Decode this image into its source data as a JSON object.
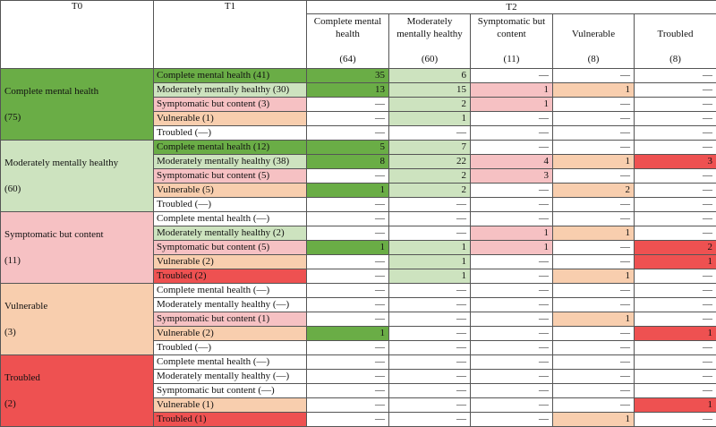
{
  "headers": {
    "t0": "T0",
    "t1": "T1",
    "t2": "T2",
    "t2_columns": [
      {
        "label": "Complete mental health",
        "count": "(64)"
      },
      {
        "label": "Moderately mentally healthy",
        "count": "(60)"
      },
      {
        "label": "Symptomatic but content",
        "count": "(11)"
      },
      {
        "label": "Vulnerable",
        "count": "(8)"
      },
      {
        "label": "Troubled",
        "count": "(8)"
      }
    ]
  },
  "colors": {
    "complete": "#6aad46",
    "moderate": "#cde3bf",
    "symptomatic": "#f6c1c3",
    "vulnerable": "#f8ceae",
    "troubled": "#ee5151",
    "white": "#ffffff"
  },
  "groups": [
    {
      "t0_label": "Complete mental health",
      "t0_count": "(75)",
      "t0_color": "complete",
      "rows": [
        {
          "t1": "Complete mental health (41)",
          "t1_color": "complete",
          "cells": [
            {
              "v": "35",
              "c": "complete"
            },
            {
              "v": "6",
              "c": "moderate"
            },
            {
              "v": "—",
              "c": "white"
            },
            {
              "v": "—",
              "c": "white"
            },
            {
              "v": "—",
              "c": "white"
            }
          ]
        },
        {
          "t1": "Moderately mentally healthy (30)",
          "t1_color": "moderate",
          "cells": [
            {
              "v": "13",
              "c": "complete"
            },
            {
              "v": "15",
              "c": "moderate"
            },
            {
              "v": "1",
              "c": "symptomatic"
            },
            {
              "v": "1",
              "c": "vulnerable"
            },
            {
              "v": "—",
              "c": "white"
            }
          ]
        },
        {
          "t1": "Symptomatic but content (3)",
          "t1_color": "symptomatic",
          "cells": [
            {
              "v": "—",
              "c": "white"
            },
            {
              "v": "2",
              "c": "moderate"
            },
            {
              "v": "1",
              "c": "symptomatic"
            },
            {
              "v": "—",
              "c": "white"
            },
            {
              "v": "—",
              "c": "white"
            }
          ]
        },
        {
          "t1": "Vulnerable (1)",
          "t1_color": "vulnerable",
          "cells": [
            {
              "v": "—",
              "c": "white"
            },
            {
              "v": "1",
              "c": "moderate"
            },
            {
              "v": "—",
              "c": "white"
            },
            {
              "v": "—",
              "c": "white"
            },
            {
              "v": "—",
              "c": "white"
            }
          ]
        },
        {
          "t1": "Troubled (—)",
          "t1_color": "white",
          "cells": [
            {
              "v": "—",
              "c": "white"
            },
            {
              "v": "—",
              "c": "white"
            },
            {
              "v": "—",
              "c": "white"
            },
            {
              "v": "—",
              "c": "white"
            },
            {
              "v": "—",
              "c": "white"
            }
          ]
        }
      ]
    },
    {
      "t0_label": "Moderately mentally healthy",
      "t0_count": "(60)",
      "t0_color": "moderate",
      "rows": [
        {
          "t1": "Complete mental health (12)",
          "t1_color": "complete",
          "cells": [
            {
              "v": "5",
              "c": "complete"
            },
            {
              "v": "7",
              "c": "moderate"
            },
            {
              "v": "—",
              "c": "white"
            },
            {
              "v": "—",
              "c": "white"
            },
            {
              "v": "—",
              "c": "white"
            }
          ]
        },
        {
          "t1": "Moderately mentally healthy (38)",
          "t1_color": "moderate",
          "cells": [
            {
              "v": "8",
              "c": "complete"
            },
            {
              "v": "22",
              "c": "moderate"
            },
            {
              "v": "4",
              "c": "symptomatic"
            },
            {
              "v": "1",
              "c": "vulnerable"
            },
            {
              "v": "3",
              "c": "troubled"
            }
          ]
        },
        {
          "t1": "Symptomatic but content (5)",
          "t1_color": "symptomatic",
          "cells": [
            {
              "v": "—",
              "c": "white"
            },
            {
              "v": "2",
              "c": "moderate"
            },
            {
              "v": "3",
              "c": "symptomatic"
            },
            {
              "v": "—",
              "c": "white"
            },
            {
              "v": "—",
              "c": "white"
            }
          ]
        },
        {
          "t1": "Vulnerable (5)",
          "t1_color": "vulnerable",
          "cells": [
            {
              "v": "1",
              "c": "complete"
            },
            {
              "v": "2",
              "c": "moderate"
            },
            {
              "v": "—",
              "c": "white"
            },
            {
              "v": "2",
              "c": "vulnerable"
            },
            {
              "v": "—",
              "c": "white"
            }
          ]
        },
        {
          "t1": "Troubled (—)",
          "t1_color": "white",
          "cells": [
            {
              "v": "—",
              "c": "white"
            },
            {
              "v": "—",
              "c": "white"
            },
            {
              "v": "—",
              "c": "white"
            },
            {
              "v": "—",
              "c": "white"
            },
            {
              "v": "—",
              "c": "white"
            }
          ]
        }
      ]
    },
    {
      "t0_label": "Symptomatic but content",
      "t0_count": "(11)",
      "t0_color": "symptomatic",
      "rows": [
        {
          "t1": "Complete mental health (—)",
          "t1_color": "white",
          "cells": [
            {
              "v": "—",
              "c": "white"
            },
            {
              "v": "—",
              "c": "white"
            },
            {
              "v": "—",
              "c": "white"
            },
            {
              "v": "—",
              "c": "white"
            },
            {
              "v": "—",
              "c": "white"
            }
          ]
        },
        {
          "t1": "Moderately mentally healthy (2)",
          "t1_color": "moderate",
          "cells": [
            {
              "v": "—",
              "c": "white"
            },
            {
              "v": "—",
              "c": "white"
            },
            {
              "v": "1",
              "c": "symptomatic"
            },
            {
              "v": "1",
              "c": "vulnerable"
            },
            {
              "v": "—",
              "c": "white"
            }
          ]
        },
        {
          "t1": "Symptomatic but content (5)",
          "t1_color": "symptomatic",
          "cells": [
            {
              "v": "1",
              "c": "complete"
            },
            {
              "v": "1",
              "c": "moderate"
            },
            {
              "v": "1",
              "c": "symptomatic"
            },
            {
              "v": "—",
              "c": "white"
            },
            {
              "v": "2",
              "c": "troubled"
            }
          ]
        },
        {
          "t1": "Vulnerable (2)",
          "t1_color": "vulnerable",
          "cells": [
            {
              "v": "—",
              "c": "white"
            },
            {
              "v": "1",
              "c": "moderate"
            },
            {
              "v": "—",
              "c": "white"
            },
            {
              "v": "—",
              "c": "white"
            },
            {
              "v": "1",
              "c": "troubled"
            }
          ]
        },
        {
          "t1": "Troubled (2)",
          "t1_color": "troubled",
          "cells": [
            {
              "v": "—",
              "c": "white"
            },
            {
              "v": "1",
              "c": "moderate"
            },
            {
              "v": "—",
              "c": "white"
            },
            {
              "v": "1",
              "c": "vulnerable"
            },
            {
              "v": "—",
              "c": "white"
            }
          ]
        }
      ]
    },
    {
      "t0_label": "Vulnerable",
      "t0_count": "(3)",
      "t0_color": "vulnerable",
      "rows": [
        {
          "t1": "Complete mental health (—)",
          "t1_color": "white",
          "cells": [
            {
              "v": "—",
              "c": "white"
            },
            {
              "v": "—",
              "c": "white"
            },
            {
              "v": "—",
              "c": "white"
            },
            {
              "v": "—",
              "c": "white"
            },
            {
              "v": "—",
              "c": "white"
            }
          ]
        },
        {
          "t1": "Moderately mentally healthy (—)",
          "t1_color": "white",
          "cells": [
            {
              "v": "—",
              "c": "white"
            },
            {
              "v": "—",
              "c": "white"
            },
            {
              "v": "—",
              "c": "white"
            },
            {
              "v": "—",
              "c": "white"
            },
            {
              "v": "—",
              "c": "white"
            }
          ]
        },
        {
          "t1": "Symptomatic but content (1)",
          "t1_color": "symptomatic",
          "cells": [
            {
              "v": "—",
              "c": "white"
            },
            {
              "v": "—",
              "c": "white"
            },
            {
              "v": "—",
              "c": "white"
            },
            {
              "v": "1",
              "c": "vulnerable"
            },
            {
              "v": "—",
              "c": "white"
            }
          ]
        },
        {
          "t1": "Vulnerable (2)",
          "t1_color": "vulnerable",
          "cells": [
            {
              "v": "1",
              "c": "complete"
            },
            {
              "v": "—",
              "c": "white"
            },
            {
              "v": "—",
              "c": "white"
            },
            {
              "v": "—",
              "c": "white"
            },
            {
              "v": "1",
              "c": "troubled"
            }
          ]
        },
        {
          "t1": "Troubled (—)",
          "t1_color": "white",
          "cells": [
            {
              "v": "—",
              "c": "white"
            },
            {
              "v": "—",
              "c": "white"
            },
            {
              "v": "—",
              "c": "white"
            },
            {
              "v": "—",
              "c": "white"
            },
            {
              "v": "—",
              "c": "white"
            }
          ]
        }
      ]
    },
    {
      "t0_label": "Troubled",
      "t0_count": "(2)",
      "t0_color": "troubled",
      "rows": [
        {
          "t1": "Complete mental health (—)",
          "t1_color": "white",
          "cells": [
            {
              "v": "—",
              "c": "white"
            },
            {
              "v": "—",
              "c": "white"
            },
            {
              "v": "—",
              "c": "white"
            },
            {
              "v": "—",
              "c": "white"
            },
            {
              "v": "—",
              "c": "white"
            }
          ]
        },
        {
          "t1": "Moderately mentally healthy (—)",
          "t1_color": "white",
          "cells": [
            {
              "v": "—",
              "c": "white"
            },
            {
              "v": "—",
              "c": "white"
            },
            {
              "v": "—",
              "c": "white"
            },
            {
              "v": "—",
              "c": "white"
            },
            {
              "v": "—",
              "c": "white"
            }
          ]
        },
        {
          "t1": "Symptomatic but content (—)",
          "t1_color": "white",
          "cells": [
            {
              "v": "—",
              "c": "white"
            },
            {
              "v": "—",
              "c": "white"
            },
            {
              "v": "—",
              "c": "white"
            },
            {
              "v": "—",
              "c": "white"
            },
            {
              "v": "—",
              "c": "white"
            }
          ]
        },
        {
          "t1": "Vulnerable (1)",
          "t1_color": "vulnerable",
          "cells": [
            {
              "v": "—",
              "c": "white"
            },
            {
              "v": "—",
              "c": "white"
            },
            {
              "v": "—",
              "c": "white"
            },
            {
              "v": "—",
              "c": "white"
            },
            {
              "v": "1",
              "c": "troubled"
            }
          ]
        },
        {
          "t1": "Troubled (1)",
          "t1_color": "troubled",
          "cells": [
            {
              "v": "—",
              "c": "white"
            },
            {
              "v": "—",
              "c": "white"
            },
            {
              "v": "—",
              "c": "white"
            },
            {
              "v": "1",
              "c": "vulnerable"
            },
            {
              "v": "—",
              "c": "white"
            }
          ]
        }
      ]
    }
  ]
}
